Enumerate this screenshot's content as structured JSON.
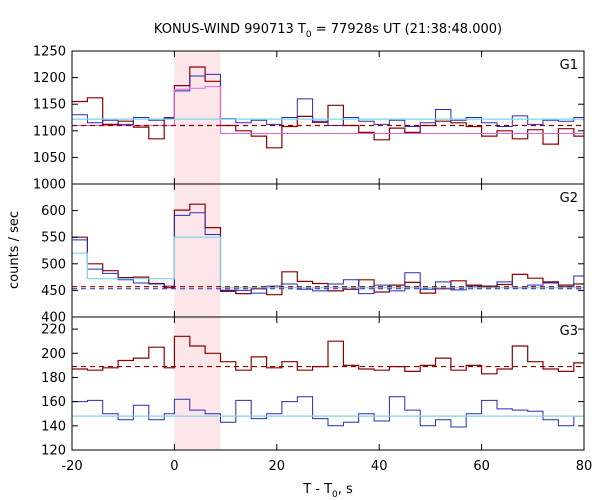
{
  "chart_data": {
    "type": "line",
    "title": "KONUS-WIND 990713 T",
    "title_sub": "0",
    "title_rest": " = 77928s UT (21:38:48.000)",
    "xlabel": "T - T",
    "xlabel_sub": "0",
    "xlabel_rest": ", s",
    "ylabel": "counts / sec",
    "xlim": [
      -20,
      80
    ],
    "x_ticks": [
      {
        "value": -20,
        "label": "-20"
      },
      {
        "value": 0,
        "label": "0"
      },
      {
        "value": 20,
        "label": "20"
      },
      {
        "value": 40,
        "label": "40"
      },
      {
        "value": 60,
        "label": "60"
      },
      {
        "value": 80,
        "label": "80"
      }
    ],
    "highlight_region": {
      "x0": 0,
      "x1": 9,
      "color": "#fde6ea"
    },
    "panels": [
      {
        "label": "G1",
        "ylim": [
          1000,
          1250
        ],
        "y_ticks": [
          {
            "value": 1000,
            "label": "1000"
          },
          {
            "value": 1050,
            "label": "1050"
          },
          {
            "value": 1100,
            "label": "1100"
          },
          {
            "value": 1150,
            "label": "1150"
          },
          {
            "value": 1200,
            "label": "1200"
          },
          {
            "value": 1250,
            "label": "1250"
          }
        ],
        "series": [
          {
            "color": "#8b0000",
            "kind": "step",
            "width": 1.2,
            "edges": [
              -20,
              -17,
              -14,
              -11,
              -8,
              -5,
              -2,
              0,
              3,
              6,
              9,
              12,
              15,
              18,
              21,
              24,
              27,
              30,
              33,
              36,
              39,
              42,
              45,
              48,
              51,
              54,
              57,
              60,
              63,
              66,
              69,
              72,
              75,
              78,
              80
            ],
            "values": [
              1155,
              1162,
              1112,
              1118,
              1107,
              1085,
              1123,
              1185,
              1220,
              1193,
              1110,
              1100,
              1090,
              1068,
              1108,
              1127,
              1116,
              1148,
              1110,
              1097,
              1083,
              1105,
              1097,
              1110,
              1118,
              1115,
              1108,
              1090,
              1100,
              1085,
              1102,
              1075,
              1104,
              1090
            ]
          },
          {
            "color": "#2a2ab8",
            "kind": "step",
            "width": 1.0,
            "edges": [
              -20,
              -17,
              -14,
              -11,
              -8,
              -5,
              -2,
              0,
              3,
              6,
              9,
              12,
              15,
              18,
              21,
              24,
              27,
              30,
              33,
              36,
              39,
              42,
              45,
              48,
              51,
              54,
              57,
              60,
              63,
              66,
              69,
              72,
              75,
              78,
              80
            ],
            "values": [
              1130,
              1115,
              1120,
              1112,
              1125,
              1120,
              1125,
              1175,
              1203,
              1206,
              1123,
              1115,
              1120,
              1112,
              1125,
              1160,
              1118,
              1110,
              1125,
              1118,
              1112,
              1120,
              1108,
              1115,
              1140,
              1120,
              1125,
              1115,
              1108,
              1128,
              1112,
              1120,
              1118,
              1125
            ]
          },
          {
            "color": "#e066d8",
            "kind": "step",
            "width": 1.0,
            "edges": [
              -20,
              0,
              3,
              6,
              9,
              80
            ],
            "values": [
              1110,
              1178,
              1180,
              1183,
              1095
            ]
          },
          {
            "color": "#7fd4e8",
            "kind": "hline",
            "y": 1122,
            "x0": -20,
            "x1": 80,
            "width": 1.2
          },
          {
            "color": "#8b0000",
            "kind": "dashed",
            "y": 1110,
            "x0": -20,
            "x1": 80,
            "width": 1.2
          }
        ]
      },
      {
        "label": "G2",
        "ylim": [
          400,
          650
        ],
        "y_ticks": [
          {
            "value": 400,
            "label": "400"
          },
          {
            "value": 450,
            "label": "450"
          },
          {
            "value": 500,
            "label": "500"
          },
          {
            "value": 550,
            "label": "550"
          },
          {
            "value": 600,
            "label": "600"
          }
        ],
        "series": [
          {
            "color": "#8b0000",
            "kind": "step",
            "width": 1.2,
            "edges": [
              -20,
              -17,
              -14,
              -11,
              -8,
              -5,
              -2,
              0,
              3,
              6,
              9,
              12,
              15,
              18,
              21,
              24,
              27,
              30,
              33,
              36,
              39,
              42,
              45,
              48,
              51,
              54,
              57,
              60,
              63,
              66,
              69,
              72,
              75,
              78,
              80
            ],
            "values": [
              550,
              500,
              487,
              474,
              475,
              463,
              455,
              601,
              612,
              568,
              450,
              444,
              453,
              442,
              485,
              467,
              463,
              449,
              452,
              470,
              447,
              460,
              465,
              445,
              453,
              468,
              460,
              458,
              461,
              480,
              473,
              466,
              460,
              462
            ]
          },
          {
            "color": "#2a2ab8",
            "kind": "step",
            "width": 1.0,
            "edges": [
              -20,
              -17,
              -14,
              -11,
              -8,
              -5,
              -2,
              0,
              3,
              6,
              9,
              12,
              15,
              18,
              21,
              24,
              27,
              30,
              33,
              36,
              39,
              42,
              45,
              48,
              51,
              54,
              57,
              60,
              63,
              66,
              69,
              72,
              75,
              78,
              80
            ],
            "values": [
              545,
              490,
              482,
              470,
              464,
              462,
              458,
              591,
              596,
              555,
              448,
              450,
              445,
              458,
              462,
              452,
              449,
              462,
              470,
              444,
              460,
              449,
              483,
              452,
              466,
              451,
              458,
              456,
              466,
              455,
              460,
              464,
              457,
              477
            ]
          },
          {
            "color": "#7fd4e8",
            "kind": "step",
            "width": 1.2,
            "edges": [
              -20,
              -17,
              0,
              9,
              80
            ],
            "values": [
              520,
              472,
              550,
              455,
              455
            ]
          },
          {
            "color": "#8b0000",
            "kind": "dashed",
            "y": 457,
            "x0": -20,
            "x1": 80,
            "width": 1.2
          },
          {
            "color": "#2a2ab8",
            "kind": "dashed",
            "y": 453,
            "x0": -20,
            "x1": 80,
            "width": 1.0
          }
        ]
      },
      {
        "label": "G3",
        "ylim": [
          120,
          230
        ],
        "y_ticks": [
          {
            "value": 120,
            "label": "120"
          },
          {
            "value": 140,
            "label": "140"
          },
          {
            "value": 160,
            "label": "160"
          },
          {
            "value": 180,
            "label": "180"
          },
          {
            "value": 200,
            "label": "200"
          },
          {
            "value": 220,
            "label": "220"
          }
        ],
        "series": [
          {
            "color": "#8b0000",
            "kind": "step",
            "width": 1.2,
            "edges": [
              -20,
              -17,
              -14,
              -11,
              -8,
              -5,
              -2,
              0,
              3,
              6,
              9,
              12,
              15,
              18,
              21,
              24,
              27,
              30,
              33,
              36,
              39,
              42,
              45,
              48,
              51,
              54,
              57,
              60,
              63,
              66,
              69,
              72,
              75,
              78,
              80
            ],
            "values": [
              187,
              186,
              188,
              194,
              196,
              205,
              188,
              214,
              206,
              200,
              193,
              186,
              197,
              188,
              193,
              186,
              189,
              210,
              190,
              187,
              186,
              189,
              185,
              190,
              196,
              186,
              190,
              183,
              187,
              206,
              193,
              187,
              185,
              192
            ]
          },
          {
            "color": "#2a2ab8",
            "kind": "step",
            "width": 1.0,
            "edges": [
              -20,
              -17,
              -14,
              -11,
              -8,
              -5,
              -2,
              0,
              3,
              6,
              9,
              12,
              15,
              18,
              21,
              24,
              27,
              30,
              33,
              36,
              39,
              42,
              45,
              48,
              51,
              54,
              57,
              60,
              63,
              66,
              69,
              72,
              75,
              78,
              80
            ],
            "values": [
              160,
              161,
              150,
              145,
              157,
              145,
              150,
              162,
              153,
              150,
              143,
              161,
              146,
              150,
              160,
              164,
              146,
              140,
              143,
              150,
              144,
              164,
              153,
              140,
              145,
              139,
              150,
              161,
              154,
              153,
              152,
              145,
              140,
              148
            ]
          },
          {
            "color": "#7fd4e8",
            "kind": "hline",
            "y": 148,
            "x0": -20,
            "x1": 80,
            "width": 1.2
          },
          {
            "color": "#8b0000",
            "kind": "dashed",
            "y": 189,
            "x0": -20,
            "x1": 80,
            "width": 1.2
          }
        ]
      }
    ]
  }
}
